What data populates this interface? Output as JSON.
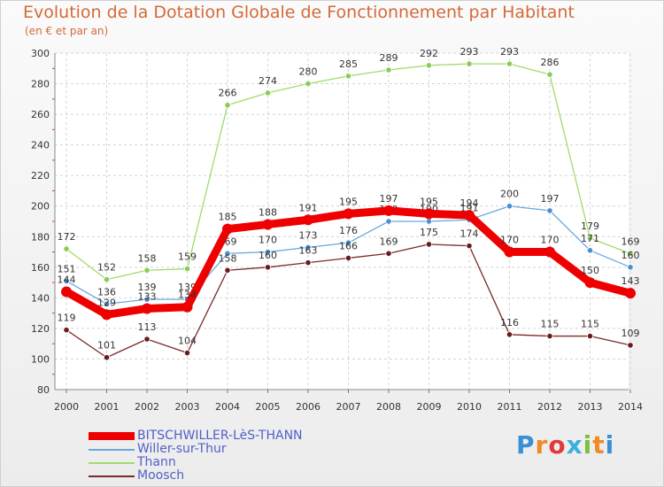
{
  "header": {
    "title": "Evolution de la Dotation Globale de Fonctionnement par Habitant",
    "subtitle": "(en € et par an)"
  },
  "logo": {
    "text": "Proxiti",
    "colors": [
      "#3a8fd6",
      "#f08a24",
      "#e03a3a",
      "#3ab0e0",
      "#7ac142",
      "#f08a24",
      "#3a8fd6"
    ]
  },
  "chart_data": {
    "type": "line",
    "title": "Evolution de la Dotation Globale de Fonctionnement par Habitant",
    "subtitle": "(en € et par an)",
    "xlabel": "",
    "ylabel": "",
    "categories": [
      "2000",
      "2001",
      "2002",
      "2003",
      "2004",
      "2005",
      "2006",
      "2007",
      "2008",
      "2009",
      "2010",
      "2011",
      "2012",
      "2013",
      "2014"
    ],
    "ylim": [
      80,
      300
    ],
    "yticks": [
      80,
      100,
      120,
      140,
      160,
      180,
      200,
      220,
      240,
      260,
      280,
      300
    ],
    "grid": true,
    "legend_position": "bottom-left",
    "series": [
      {
        "name": "Thann",
        "color": "#88cc55",
        "line_color": "#9fdc6a",
        "values": [
          172,
          152,
          158,
          159,
          266,
          274,
          280,
          285,
          289,
          292,
          293,
          293,
          286,
          179,
          169
        ],
        "labels": [
          "172",
          "152",
          "158",
          "159",
          "266",
          "274",
          "280",
          "285",
          "289",
          "292",
          "293",
          "293",
          "286",
          "179",
          "169"
        ]
      },
      {
        "name": "Willer-sur-Thur",
        "color": "#4a8fd0",
        "line_color": "#6aa7de",
        "values": [
          151,
          136,
          139,
          139,
          169,
          170,
          173,
          176,
          190,
          190,
          191,
          200,
          197,
          171,
          160
        ],
        "labels": [
          "151",
          "136",
          "139",
          "139",
          "169",
          "170",
          "173",
          "176",
          "190",
          "190",
          "191",
          "200",
          "197",
          "171",
          "160"
        ]
      },
      {
        "name": "Moosch",
        "color": "#6a1a1a",
        "line_color": "#7a2a2a",
        "values": [
          119,
          101,
          113,
          104,
          158,
          160,
          163,
          166,
          169,
          175,
          174,
          116,
          115,
          115,
          109
        ],
        "labels": [
          "119",
          "101",
          "113",
          "104",
          "158",
          "160",
          "163",
          "166",
          "169",
          "175",
          "174",
          "116",
          "115",
          "115",
          "109"
        ]
      },
      {
        "name": "BITSCHWILLER-LèS-THANN",
        "color": "#ee0000",
        "line_color": "#ee0000",
        "values": [
          144,
          129,
          133,
          134,
          185,
          188,
          191,
          195,
          197,
          195,
          194,
          170,
          170,
          150,
          143
        ],
        "labels": [
          "144",
          "129",
          "133",
          "134",
          "185",
          "188",
          "191",
          "195",
          "197",
          "195",
          "194",
          "170",
          "170",
          "150",
          "143"
        ]
      }
    ],
    "legend": [
      {
        "name": "BITSCHWILLER-LèS-THANN",
        "color": "#ee0000",
        "thick": true
      },
      {
        "name": "Willer-sur-Thur",
        "color": "#6aa7de",
        "thick": false
      },
      {
        "name": "Thann",
        "color": "#9fdc6a",
        "thick": false
      },
      {
        "name": "Moosch",
        "color": "#7a2a2a",
        "thick": false
      }
    ]
  }
}
